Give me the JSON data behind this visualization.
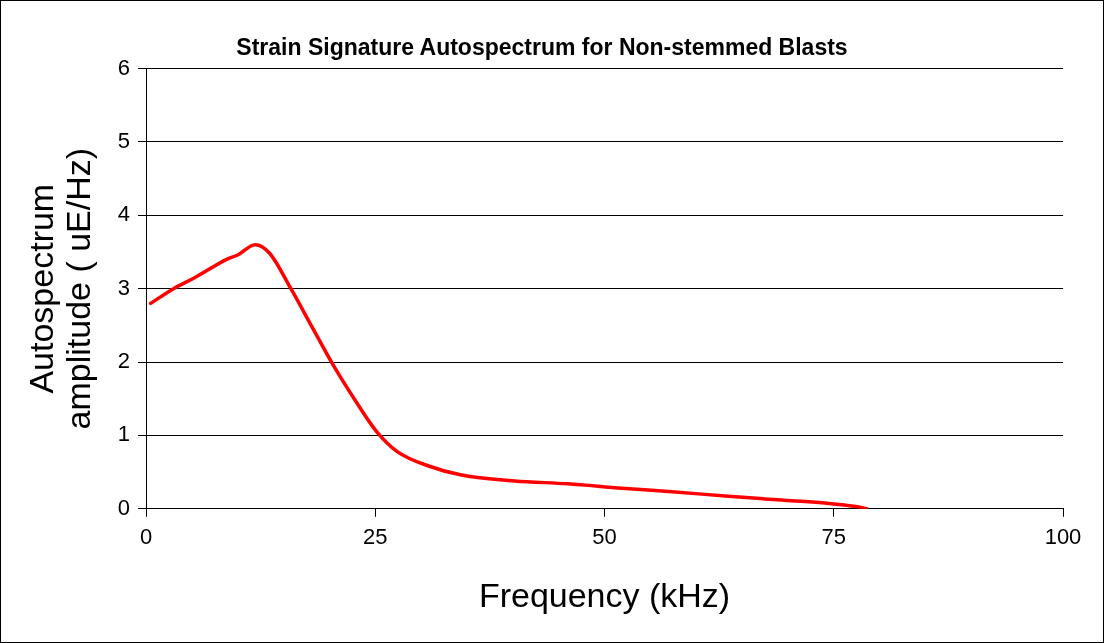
{
  "chart_data": {
    "type": "line",
    "title": "Strain Signature Autospectrum for Non-stemmed Blasts",
    "xlabel": "Frequency (kHz)",
    "ylabel": "Autospectrum amplitude ( uE/Hz)",
    "x": [
      0.5,
      3,
      5.3,
      8.8,
      10,
      11.9,
      13.5,
      15.8,
      18.1,
      20.5,
      22.8,
      25.1,
      27.4,
      30.9,
      34.4,
      40.2,
      46,
      51.9,
      57.7,
      63.5,
      69.3,
      74,
      77.4,
      78.6
    ],
    "series": [
      {
        "color": "#ff0000",
        "values": [
          2.8,
          3.0,
          3.15,
          3.4,
          3.46,
          3.6,
          3.48,
          3.0,
          2.48,
          1.94,
          1.48,
          1.06,
          0.78,
          0.58,
          0.46,
          0.38,
          0.34,
          0.28,
          0.23,
          0.17,
          0.12,
          0.08,
          0.03,
          0
        ]
      }
    ],
    "xlim": [
      0,
      100
    ],
    "xticks": [
      0,
      25,
      50,
      75,
      100
    ],
    "ylim": [
      0,
      6
    ],
    "yticks": [
      0,
      1,
      2,
      3,
      4,
      5,
      6
    ],
    "grid": "y",
    "legend": false,
    "marker": "none",
    "line_style": "solid"
  }
}
